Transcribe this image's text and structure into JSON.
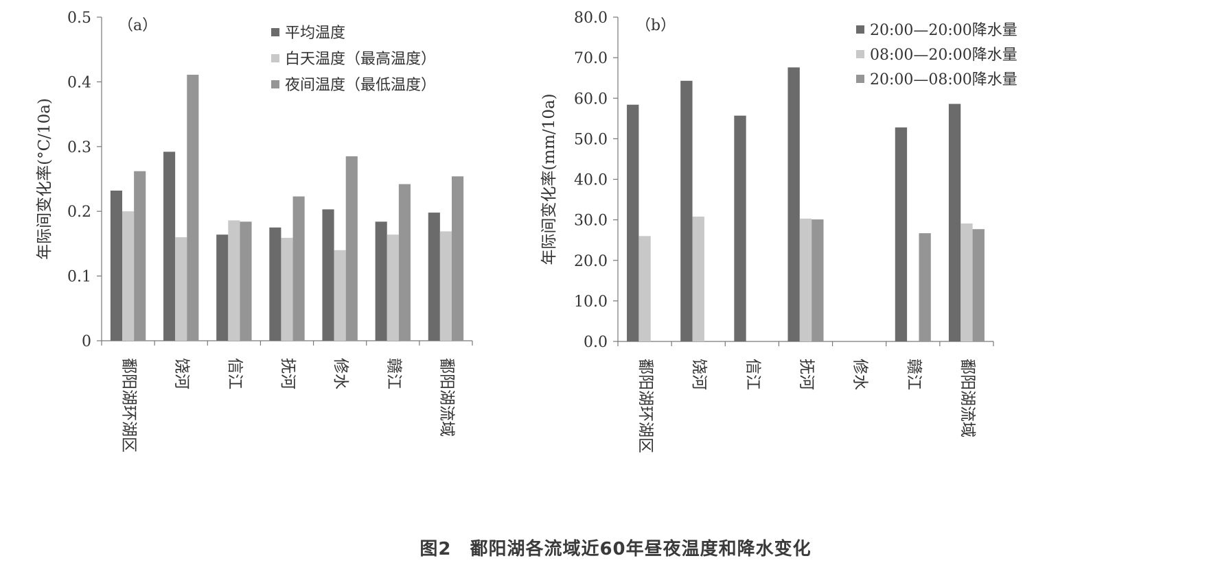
{
  "caption": "图2　鄱阳湖各流域近60年昼夜温度和降水变化",
  "chart_data": [
    {
      "type": "bar",
      "panel_label": "（a）",
      "ylabel": "年际间变化率(°C/10a)",
      "ylim": [
        0,
        0.5
      ],
      "yticks": [
        "0",
        "0.1",
        "0.2",
        "0.3",
        "0.4",
        "0.5"
      ],
      "tick_values": [
        0,
        0.1,
        0.2,
        0.3,
        0.4,
        0.5
      ],
      "categories": [
        "鄱阳湖环湖区",
        "饶河",
        "信江",
        "抚河",
        "修水",
        "赣江",
        "鄱阳湖流域"
      ],
      "series": [
        {
          "name": "平均温度",
          "color": "#6b6b6b",
          "values": [
            0.232,
            0.292,
            0.164,
            0.175,
            0.203,
            0.184,
            0.198
          ]
        },
        {
          "name": "白天温度（最高温度）",
          "color": "#c8c8c8",
          "values": [
            0.2,
            0.16,
            0.186,
            0.159,
            0.14,
            0.164,
            0.169
          ]
        },
        {
          "name": "夜间温度（最低温度）",
          "color": "#959595",
          "values": [
            0.262,
            0.411,
            0.184,
            0.223,
            0.285,
            0.242,
            0.254
          ]
        }
      ],
      "legend": "top-right",
      "grid": false
    },
    {
      "type": "bar",
      "panel_label": "（b）",
      "ylabel": "年际间变化率(mm/10a)",
      "ylim": [
        0,
        80
      ],
      "yticks": [
        "0.0",
        "10.0",
        "20.0",
        "30.0",
        "40.0",
        "50.0",
        "60.0",
        "70.0",
        "80.0"
      ],
      "tick_values": [
        0,
        10,
        20,
        30,
        40,
        50,
        60,
        70,
        80
      ],
      "categories": [
        "鄱阳湖环湖区",
        "饶河",
        "信江",
        "抚河",
        "修水",
        "赣江",
        "鄱阳湖流域"
      ],
      "series": [
        {
          "name": "20:00—20:00降水量",
          "color": "#6b6b6b",
          "values": [
            58.4,
            64.3,
            55.7,
            67.6,
            0,
            52.8,
            58.6
          ]
        },
        {
          "name": "08:00—20:00降水量",
          "color": "#c8c8c8",
          "values": [
            26.0,
            30.8,
            0,
            30.3,
            0,
            0,
            29.1
          ]
        },
        {
          "name": "20:00—08:00降水量",
          "color": "#959595",
          "values": [
            0,
            0,
            0,
            30.1,
            0,
            26.7,
            27.7
          ]
        }
      ],
      "legend": "top-right",
      "grid": false
    }
  ]
}
